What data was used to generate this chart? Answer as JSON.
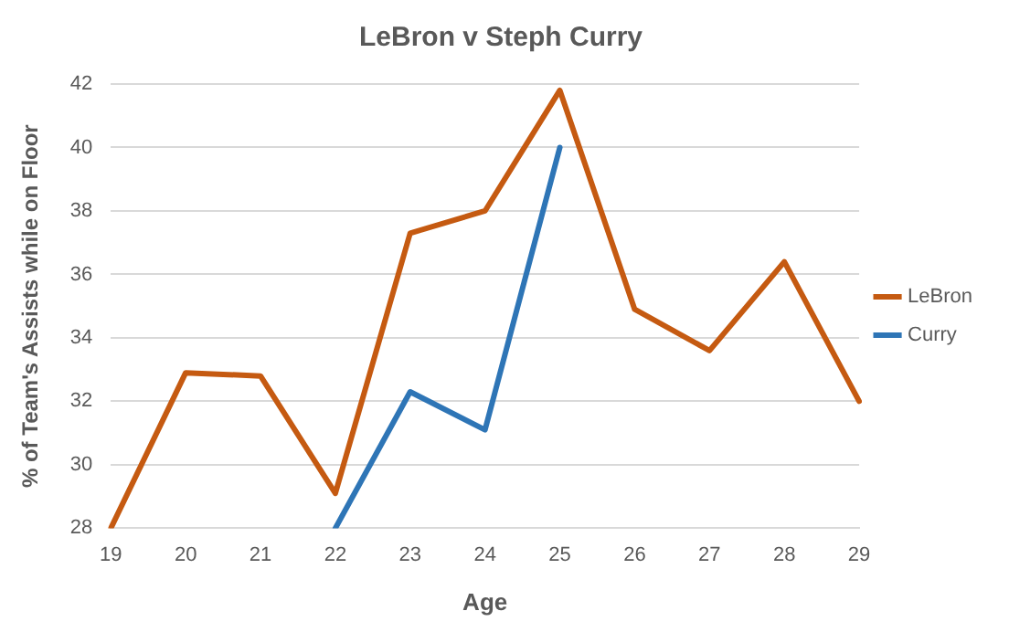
{
  "chart_data": {
    "type": "line",
    "title": "LeBron v Steph Curry",
    "xlabel": "Age",
    "ylabel": "% of Team's Assists while on Floor",
    "categories": [
      "19",
      "20",
      "21",
      "22",
      "23",
      "24",
      "25",
      "26",
      "27",
      "28",
      "29"
    ],
    "series": [
      {
        "name": "LeBron",
        "color": "#c55a11",
        "values": [
          28,
          32.9,
          32.8,
          29.1,
          37.3,
          38.0,
          41.8,
          34.9,
          33.6,
          36.4,
          32.0
        ]
      },
      {
        "name": "Curry",
        "color": "#2e75b6",
        "values": [
          null,
          null,
          null,
          28,
          32.3,
          31.1,
          40.0,
          null,
          null,
          null,
          null
        ]
      }
    ],
    "ylim": [
      28,
      42
    ],
    "yticks": [
      28,
      30,
      32,
      34,
      36,
      38,
      40,
      42
    ],
    "grid": "y",
    "legend": "right",
    "marker": "none",
    "line_style": "solid"
  }
}
